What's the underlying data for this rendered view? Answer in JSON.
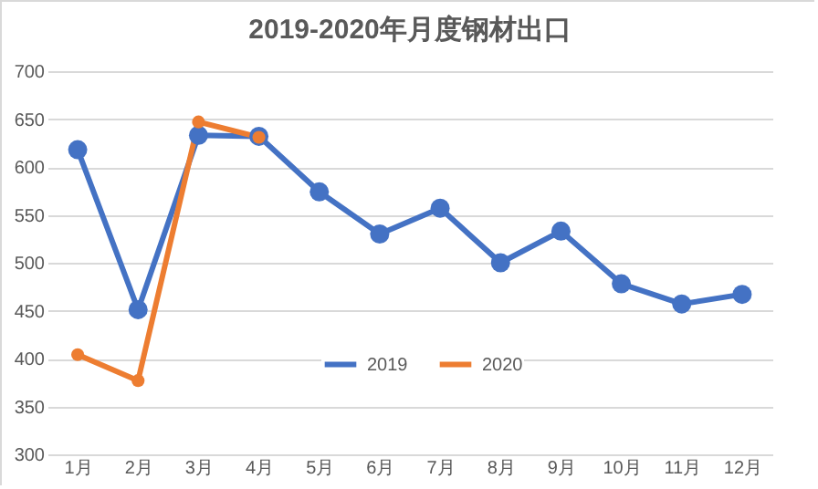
{
  "chart_data": {
    "type": "line",
    "title": "2019-2020年月度钢材出口",
    "categories": [
      "1月",
      "2月",
      "3月",
      "4月",
      "5月",
      "6月",
      "7月",
      "8月",
      "9月",
      "10月",
      "11月",
      "12月"
    ],
    "series": [
      {
        "name": "2019",
        "color": "#4472c4",
        "values": [
          618,
          451,
          633,
          632,
          574,
          530,
          557,
          500,
          533,
          478,
          457,
          467
        ]
      },
      {
        "name": "2020",
        "color": "#ed7d31",
        "values": [
          404,
          377,
          647,
          631,
          null,
          null,
          null,
          null,
          null,
          null,
          null,
          null
        ]
      }
    ],
    "ylim": [
      300,
      700
    ],
    "yticks": [
      300,
      350,
      400,
      450,
      500,
      550,
      600,
      650,
      700
    ],
    "grid": "y",
    "legend": "bottom",
    "marker": "circle",
    "line_style": "solid"
  }
}
